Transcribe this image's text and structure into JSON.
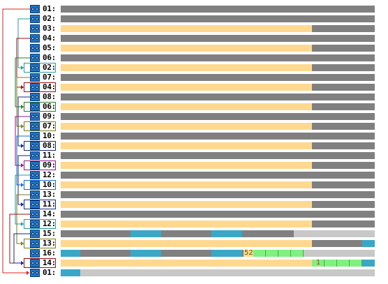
{
  "colors": {
    "gray_bar": "#808080",
    "light_bar": "#c8c8c8",
    "peach": "#ffd890",
    "teal": "#3aa7c6",
    "green": "#80f080",
    "red": "#e02020",
    "dark_green": "#2a7a2a",
    "teal_line": "#2a9a9a",
    "olive": "#7a7a20",
    "brown_red": "#9a1010",
    "purple": "#8a1a8a",
    "blue": "#1a6ad0",
    "navy": "#102a80"
  },
  "rows": [
    {
      "label": "01:",
      "bar": "gray"
    },
    {
      "label": "02:",
      "bar": "gray"
    },
    {
      "label": "03:",
      "bar": "peach",
      "fill": 0.8
    },
    {
      "label": "04:",
      "bar": "gray"
    },
    {
      "label": "05:",
      "bar": "peach",
      "fill": 0.8
    },
    {
      "label": "06:",
      "bar": "gray"
    },
    {
      "label": "02:",
      "bar": "peach",
      "fill": 0.8,
      "boxed": "teal_line"
    },
    {
      "label": "07:",
      "bar": "gray"
    },
    {
      "label": "04:",
      "bar": "peach",
      "fill": 0.8,
      "boxed": "brown_red"
    },
    {
      "label": "08:",
      "bar": "gray"
    },
    {
      "label": "06:",
      "bar": "peach",
      "fill": 0.8,
      "boxed": "dark_green"
    },
    {
      "label": "09:",
      "bar": "gray"
    },
    {
      "label": "07:",
      "bar": "peach",
      "fill": 0.8,
      "boxed": "olive"
    },
    {
      "label": "10:",
      "bar": "gray"
    },
    {
      "label": "08:",
      "bar": "peach",
      "fill": 0.8,
      "boxed": "navy"
    },
    {
      "label": "11:",
      "bar": "gray"
    },
    {
      "label": "09:",
      "bar": "peach",
      "fill": 0.8,
      "boxed": "purple"
    },
    {
      "label": "12:",
      "bar": "gray"
    },
    {
      "label": "10:",
      "bar": "peach",
      "fill": 0.8,
      "boxed": "blue"
    },
    {
      "label": "13:",
      "bar": "gray"
    },
    {
      "label": "11:",
      "bar": "peach",
      "fill": 0.8,
      "boxed": "navy"
    },
    {
      "label": "14:",
      "bar": "gray"
    },
    {
      "label": "12:",
      "bar": "peach",
      "fill": 0.8,
      "boxed": "teal_line"
    },
    {
      "label": "15:",
      "bar": "mixed15"
    },
    {
      "label": "13:",
      "bar": "peach13",
      "boxed": "olive"
    },
    {
      "label": "16:",
      "bar": "mixed16",
      "text": "52"
    },
    {
      "label": "14:",
      "bar": "peach14",
      "boxed": "brown_red",
      "text": "1"
    },
    {
      "label": "01:",
      "bar": "final",
      "arrow": "red"
    }
  ]
}
